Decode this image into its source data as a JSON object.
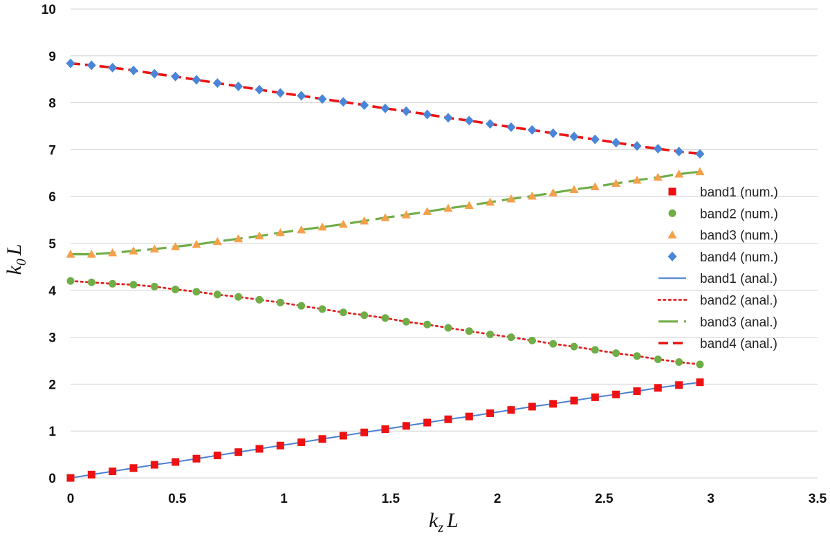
{
  "chart_data": {
    "type": "scatter",
    "title": "",
    "xlabel": {
      "main": "k",
      "sub": "z",
      "tail": "L"
    },
    "ylabel": {
      "main": "k",
      "sub": "0",
      "tail": "L"
    },
    "xlim": [
      0,
      3.5
    ],
    "ylim": [
      0,
      10
    ],
    "x_ticks": [
      0,
      0.5,
      1,
      1.5,
      2,
      2.5,
      3,
      3.5
    ],
    "x_tick_labels": [
      "0",
      "0.5",
      "1",
      "1.5",
      "2",
      "2.5",
      "3",
      "3.5"
    ],
    "y_ticks": [
      0,
      1,
      2,
      3,
      4,
      5,
      6,
      7,
      8,
      9,
      10
    ],
    "y_tick_labels": [
      "0",
      "1",
      "2",
      "3",
      "4",
      "5",
      "6",
      "7",
      "8",
      "9",
      "10"
    ],
    "grid": "horizontal",
    "legend_position": "right",
    "x_sample_step": 0.0983,
    "x_sample_count": 31,
    "series": [
      {
        "name": "band1 (num.)",
        "kind": "marker",
        "marker": "square",
        "color": "#ee1111",
        "band": 1
      },
      {
        "name": "band2 (num.)",
        "kind": "marker",
        "marker": "circle",
        "color": "#70ad47",
        "band": 2
      },
      {
        "name": "band3 (num.)",
        "kind": "marker",
        "marker": "triangle",
        "color": "#f4a04a",
        "band": 3
      },
      {
        "name": "band4 (num.)",
        "kind": "marker",
        "marker": "diamond",
        "color": "#4a86d8",
        "band": 4
      },
      {
        "name": "band1 (anal.)",
        "kind": "line",
        "dash": "solid",
        "color": "#4a7fd4",
        "band": 1
      },
      {
        "name": "band2 (anal.)",
        "kind": "line",
        "dash": "dotted",
        "color": "#e02020",
        "band": 2
      },
      {
        "name": "band3 (anal.)",
        "kind": "line",
        "dash": "longdash",
        "color": "#70ad47",
        "band": 3
      },
      {
        "name": "band4 (anal.)",
        "kind": "line",
        "dash": "dashed",
        "color": "#ee1111",
        "band": 4
      }
    ],
    "bands": {
      "1": [
        0.0,
        0.07,
        0.14,
        0.21,
        0.28,
        0.34,
        0.41,
        0.48,
        0.55,
        0.62,
        0.69,
        0.76,
        0.83,
        0.9,
        0.97,
        1.04,
        1.11,
        1.18,
        1.25,
        1.31,
        1.38,
        1.45,
        1.52,
        1.58,
        1.65,
        1.72,
        1.78,
        1.85,
        1.92,
        1.98,
        2.04
      ],
      "2": [
        4.2,
        4.17,
        4.14,
        4.12,
        4.08,
        4.02,
        3.97,
        3.91,
        3.86,
        3.8,
        3.74,
        3.67,
        3.6,
        3.53,
        3.47,
        3.41,
        3.33,
        3.27,
        3.2,
        3.13,
        3.06,
        3.0,
        2.93,
        2.86,
        2.8,
        2.73,
        2.66,
        2.6,
        2.53,
        2.47,
        2.42
      ],
      "3": [
        4.77,
        4.77,
        4.8,
        4.84,
        4.88,
        4.93,
        4.98,
        5.04,
        5.1,
        5.16,
        5.23,
        5.29,
        5.35,
        5.41,
        5.48,
        5.55,
        5.61,
        5.68,
        5.75,
        5.81,
        5.88,
        5.95,
        6.01,
        6.08,
        6.15,
        6.21,
        6.28,
        6.35,
        6.41,
        6.48,
        6.53
      ],
      "4": [
        8.84,
        8.8,
        8.75,
        8.69,
        8.62,
        8.56,
        8.49,
        8.42,
        8.35,
        8.28,
        8.21,
        8.15,
        8.08,
        8.02,
        7.95,
        7.88,
        7.82,
        7.75,
        7.68,
        7.62,
        7.55,
        7.48,
        7.42,
        7.35,
        7.28,
        7.22,
        7.15,
        7.08,
        7.02,
        6.96,
        6.91
      ]
    }
  }
}
